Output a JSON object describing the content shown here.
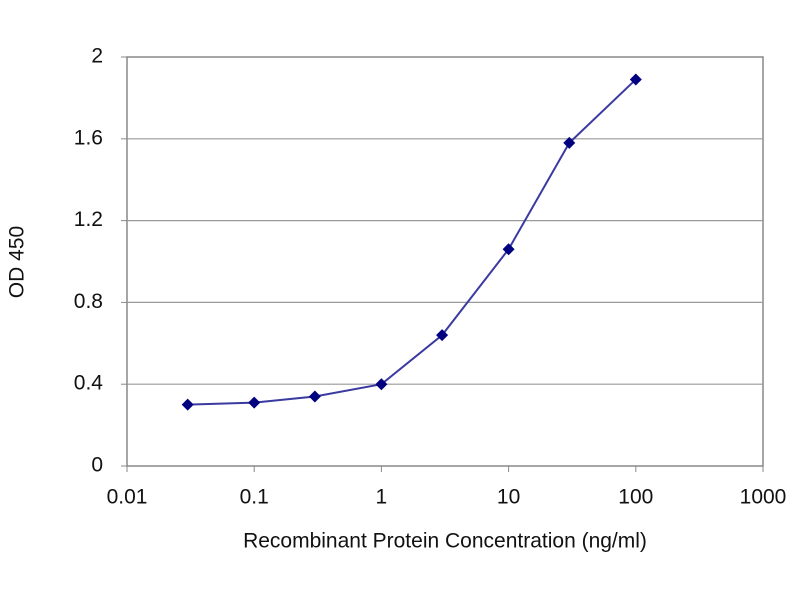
{
  "chart_data": {
    "type": "line",
    "x_label": "Recombinant Protein Concentration (ng/ml)",
    "y_label": "OD 450",
    "x": [
      0.03,
      0.1,
      0.3,
      1,
      3,
      10,
      30,
      100
    ],
    "series": [
      {
        "color": "#3a3aa0",
        "marker_color": "#000080",
        "values": [
          0.3,
          0.31,
          0.34,
          0.4,
          0.64,
          1.06,
          1.58,
          1.89
        ]
      }
    ],
    "xlim": [
      0.01,
      1000
    ],
    "xticks": [
      0.01,
      0.1,
      1,
      10,
      100,
      1000
    ],
    "x_log": true,
    "ylim": [
      0,
      2
    ],
    "yticks": [
      0,
      0.4,
      0.8,
      1.2,
      1.6,
      2
    ],
    "grid": true
  }
}
